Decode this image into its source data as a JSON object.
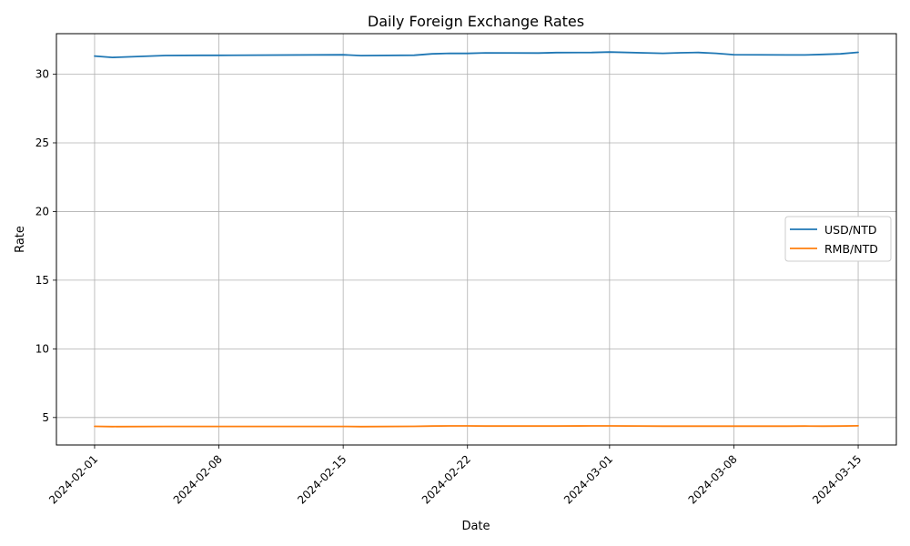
{
  "chart_data": {
    "type": "line",
    "title": "Daily Foreign Exchange Rates",
    "xlabel": "Date",
    "ylabel": "Rate",
    "x_range": [
      "2024-02-01",
      "2024-03-15"
    ],
    "ylim": [
      3.0,
      32.95
    ],
    "x_ticks": [
      "2024-02-01",
      "2024-02-08",
      "2024-02-15",
      "2024-02-22",
      "2024-03-01",
      "2024-03-08",
      "2024-03-15"
    ],
    "y_ticks": [
      5,
      10,
      15,
      20,
      25,
      30
    ],
    "grid": true,
    "legend_position": "center-right",
    "series": [
      {
        "name": "USD/NTD",
        "color": "#1f77b4",
        "points": [
          [
            "2024-02-01",
            31.32
          ],
          [
            "2024-02-02",
            31.22
          ],
          [
            "2024-02-05",
            31.36
          ],
          [
            "2024-02-07",
            31.37
          ],
          [
            "2024-02-08",
            31.37
          ],
          [
            "2024-02-15",
            31.41
          ],
          [
            "2024-02-16",
            31.35
          ],
          [
            "2024-02-19",
            31.38
          ],
          [
            "2024-02-20",
            31.48
          ],
          [
            "2024-02-21",
            31.52
          ],
          [
            "2024-02-22",
            31.51
          ],
          [
            "2024-02-23",
            31.55
          ],
          [
            "2024-02-26",
            31.54
          ],
          [
            "2024-02-27",
            31.57
          ],
          [
            "2024-02-29",
            31.58
          ],
          [
            "2024-03-01",
            31.61
          ],
          [
            "2024-03-04",
            31.52
          ],
          [
            "2024-03-05",
            31.56
          ],
          [
            "2024-03-06",
            31.58
          ],
          [
            "2024-03-07",
            31.52
          ],
          [
            "2024-03-08",
            31.42
          ],
          [
            "2024-03-11",
            31.4
          ],
          [
            "2024-03-12",
            31.4
          ],
          [
            "2024-03-13",
            31.44
          ],
          [
            "2024-03-14",
            31.48
          ],
          [
            "2024-03-15",
            31.59
          ]
        ]
      },
      {
        "name": "RMB/NTD",
        "color": "#ff7f0e",
        "points": [
          [
            "2024-02-01",
            4.36
          ],
          [
            "2024-02-02",
            4.34
          ],
          [
            "2024-02-05",
            4.35
          ],
          [
            "2024-02-08",
            4.35
          ],
          [
            "2024-02-15",
            4.35
          ],
          [
            "2024-02-16",
            4.34
          ],
          [
            "2024-02-19",
            4.36
          ],
          [
            "2024-02-20",
            4.38
          ],
          [
            "2024-02-21",
            4.39
          ],
          [
            "2024-02-22",
            4.39
          ],
          [
            "2024-02-23",
            4.38
          ],
          [
            "2024-02-26",
            4.38
          ],
          [
            "2024-02-27",
            4.38
          ],
          [
            "2024-02-29",
            4.39
          ],
          [
            "2024-03-01",
            4.39
          ],
          [
            "2024-03-04",
            4.37
          ],
          [
            "2024-03-05",
            4.37
          ],
          [
            "2024-03-06",
            4.37
          ],
          [
            "2024-03-07",
            4.37
          ],
          [
            "2024-03-08",
            4.37
          ],
          [
            "2024-03-11",
            4.37
          ],
          [
            "2024-03-12",
            4.38
          ],
          [
            "2024-03-13",
            4.37
          ],
          [
            "2024-03-14",
            4.38
          ],
          [
            "2024-03-15",
            4.4
          ]
        ]
      }
    ]
  }
}
